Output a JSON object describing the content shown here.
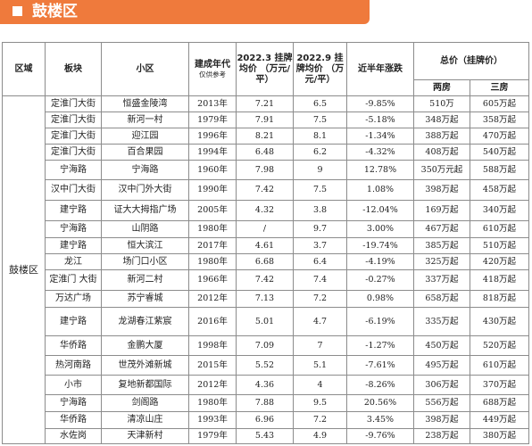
{
  "banner": {
    "title": "鼓楼区"
  },
  "headers": {
    "district": "区域",
    "block": "板块",
    "community": "小区",
    "year": "建成年代",
    "year_note": "仅供参考",
    "price_2022_3": "2022.3 挂牌均价 （万元/平）",
    "price_2022_9": "2022.9 挂牌均价 （万元/平）",
    "change": "近半年涨跌",
    "total": "总价（挂牌价）",
    "two_room": "两房",
    "three_room": "三房"
  },
  "district_name": "鼓楼区",
  "rows": [
    {
      "block": "定淮门大街",
      "community": "恒盛金陵湾",
      "year": "2013年",
      "p3": "7.21",
      "p9": "6.5",
      "change": "-9.85%",
      "two": "510万",
      "three": "605万起"
    },
    {
      "block": "定淮门大街",
      "community": "新河一村",
      "year": "1979年",
      "p3": "7.91",
      "p9": "7.5",
      "change": "-5.18%",
      "two": "348万起",
      "three": "358万起"
    },
    {
      "block": "定淮门大街",
      "community": "迎江园",
      "year": "1996年",
      "p3": "8.21",
      "p9": "8.1",
      "change": "-1.34%",
      "two": "388万起",
      "three": "470万起"
    },
    {
      "block": "定淮门大街",
      "community": "百合果园",
      "year": "1994年",
      "p3": "6.48",
      "p9": "6.2",
      "change": "-4.32%",
      "two": "408万起",
      "three": "540万起"
    },
    {
      "block": "宁海路",
      "community": "宁海路",
      "year": "1960年",
      "p3": "7.98",
      "p9": "9",
      "change": "12.78%",
      "two": "350万元起",
      "three": "588万起"
    },
    {
      "block": "汉中门大街",
      "community": "汉中门外大街",
      "year": "1990年",
      "p3": "7.42",
      "p9": "7.5",
      "change": "1.08%",
      "two": "398万起",
      "three": "458万起"
    },
    {
      "block": "建宁路",
      "community": "证大大拇指广场",
      "year": "2005年",
      "p3": "4.32",
      "p9": "3.8",
      "change": "-12.04%",
      "two": "169万起",
      "three": "340万起"
    },
    {
      "block": "宁海路",
      "community": "山阴路",
      "year": "1980年",
      "p3": "/",
      "p9": "9.7",
      "change": "3.00%",
      "two": "467万起",
      "three": "610万起"
    },
    {
      "block": "建宁路",
      "community": "恒大滨江",
      "year": "2017年",
      "p3": "4.61",
      "p9": "3.7",
      "change": "-19.74%",
      "two": "385万起",
      "three": "510万起"
    },
    {
      "block": "龙江",
      "community": "场门口小区",
      "year": "1980年",
      "p3": "6.68",
      "p9": "6.4",
      "change": "-4.19%",
      "two": "325万起",
      "three": "420万起"
    },
    {
      "block": "定淮门 大街",
      "community": "新河二村",
      "year": "1966年",
      "p3": "7.42",
      "p9": "7.4",
      "change": "-0.27%",
      "two": "337万起",
      "three": "418万起"
    },
    {
      "block": "万达广场",
      "community": "苏宁睿城",
      "year": "2012年",
      "p3": "7.13",
      "p9": "7.2",
      "change": "0.98%",
      "two": "658万起",
      "three": "818万起"
    },
    {
      "block": "建宁路",
      "community": "龙湖春江紫宸",
      "year": "2016年",
      "p3": "5.01",
      "p9": "4.7",
      "change": "-6.19%",
      "two": "335万起",
      "three": "430万起"
    },
    {
      "block": "华侨路",
      "community": "金鹏大厦",
      "year": "1998年",
      "p3": "7.09",
      "p9": "7",
      "change": "-1.27%",
      "two": "450万起",
      "three": "520万起"
    },
    {
      "block": "热河南路",
      "community": "世茂外滩新城",
      "year": "2015年",
      "p3": "5.52",
      "p9": "5.1",
      "change": "-7.61%",
      "two": "495万起",
      "three": "610万起"
    },
    {
      "block": "小市",
      "community": "复地新都国际",
      "year": "2012年",
      "p3": "4.36",
      "p9": "4",
      "change": "-8.26%",
      "two": "306万起",
      "three": "370万起"
    },
    {
      "block": "宁海路",
      "community": "剑阁路",
      "year": "1980年",
      "p3": "7.88",
      "p9": "9.5",
      "change": "20.56%",
      "two": "556万起",
      "three": "688万起"
    },
    {
      "block": "华侨路",
      "community": "清凉山庄",
      "year": "1993年",
      "p3": "6.96",
      "p9": "7.2",
      "change": "3.45%",
      "two": "398万起",
      "three": "449万起"
    },
    {
      "block": "水佐岗",
      "community": "天津新村",
      "year": "1979年",
      "p3": "5.43",
      "p9": "4.9",
      "change": "-9.76%",
      "two": "238万起",
      "three": "380万起"
    }
  ]
}
